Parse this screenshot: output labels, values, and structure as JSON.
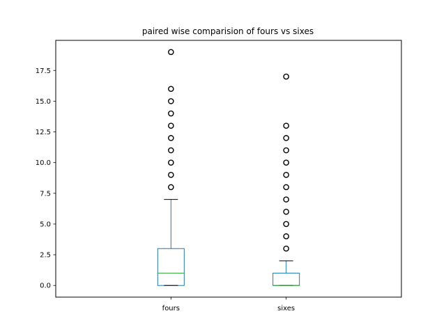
{
  "chart_data": {
    "type": "boxplot",
    "title": "paired wise comparision of fours vs sixes",
    "xlabel": "",
    "ylabel": "",
    "categories": [
      "fours",
      "sixes"
    ],
    "ylim": [
      -0.95,
      19.95
    ],
    "yticks": [
      0.0,
      2.5,
      5.0,
      7.5,
      10.0,
      12.5,
      15.0,
      17.5
    ],
    "ytick_labels": [
      "0.0",
      "2.5",
      "5.0",
      "7.5",
      "10.0",
      "12.5",
      "15.0",
      "17.5"
    ],
    "grid": false,
    "series": [
      {
        "category": "fours",
        "whisker_low": 0,
        "q1": 0,
        "median": 1,
        "q3": 3,
        "whisker_high": 7,
        "outliers": [
          8,
          9,
          10,
          11,
          12,
          13,
          14,
          15,
          16,
          19
        ]
      },
      {
        "category": "sixes",
        "whisker_low": 0,
        "q1": 0,
        "median": 0,
        "q3": 1,
        "whisker_high": 2,
        "outliers": [
          3,
          4,
          5,
          6,
          7,
          8,
          9,
          10,
          11,
          12,
          13,
          17
        ]
      }
    ],
    "colors": {
      "box": "#1f77b4",
      "median": "#2ca02c",
      "whisker": "#1f77b4",
      "cap": "#000000",
      "outlier": "#000000"
    }
  }
}
